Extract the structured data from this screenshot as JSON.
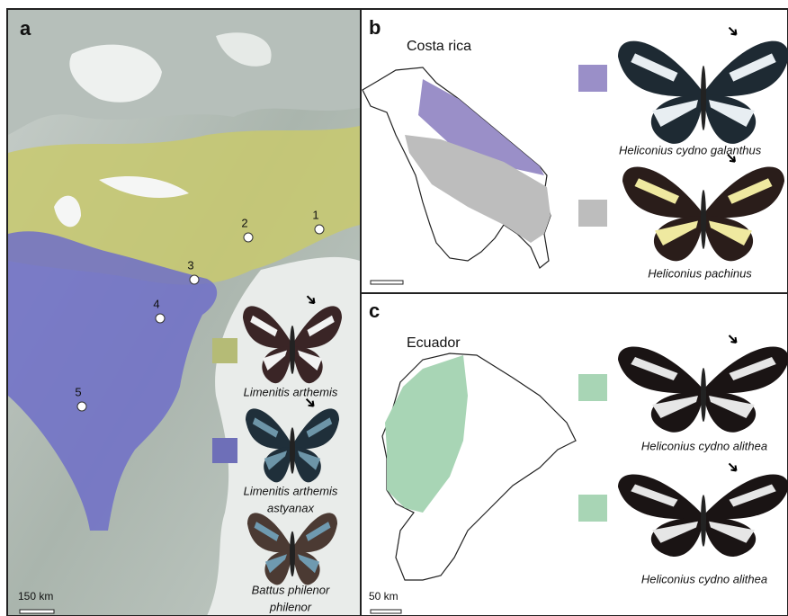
{
  "panels": [
    {
      "label": "a",
      "sites": [
        "1",
        "2",
        "3",
        "4",
        "5"
      ],
      "species": [
        {
          "lines": [
            "Limenitis arthemis"
          ]
        },
        {
          "lines": [
            "Limenitis arthemis",
            "astyanax"
          ]
        },
        {
          "lines": [
            "Battus philenor",
            "philenor"
          ]
        }
      ],
      "scale_bar": "150 km"
    },
    {
      "label": "b",
      "region": "Costa rica",
      "species": [
        {
          "lines": [
            "Heliconius cydno galanthus"
          ]
        },
        {
          "lines": [
            "Heliconius pachinus"
          ]
        }
      ]
    },
    {
      "label": "c",
      "region": "Ecuador",
      "species": [
        {
          "lines": [
            "Heliconius cydno alithea"
          ]
        },
        {
          "lines": [
            "Heliconius cydno alithea"
          ]
        }
      ],
      "scale_bar": "50 km"
    }
  ]
}
